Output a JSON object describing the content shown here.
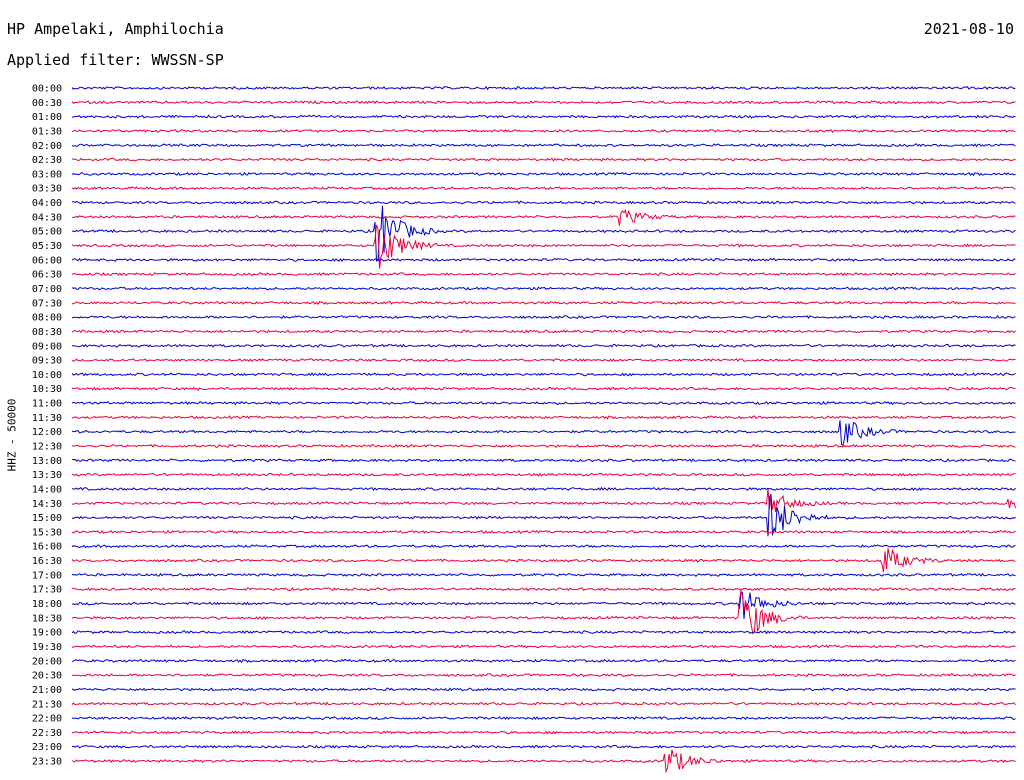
{
  "header": {
    "station": "HP Ampelaki, Amphilochia",
    "date": "2021-08-10",
    "filter": "Applied filter: WWSSN-SP"
  },
  "colors": {
    "even": "#0000cc",
    "odd": "#e8003d"
  },
  "chart_data": {
    "type": "line",
    "title": "",
    "ylabel": "HHZ - 50000",
    "row_labels": [
      "00:00",
      "00:30",
      "01:00",
      "01:30",
      "02:00",
      "02:30",
      "03:00",
      "03:30",
      "04:00",
      "04:30",
      "05:00",
      "05:30",
      "06:00",
      "06:30",
      "07:00",
      "07:30",
      "08:00",
      "08:30",
      "09:00",
      "09:30",
      "10:00",
      "10:30",
      "11:00",
      "11:30",
      "12:00",
      "12:30",
      "13:00",
      "13:30",
      "14:00",
      "14:30",
      "15:00",
      "15:30",
      "16:00",
      "16:30",
      "17:00",
      "17:30",
      "18:00",
      "18:30",
      "19:00",
      "19:30",
      "20:00",
      "20:30",
      "21:00",
      "21:30",
      "22:00",
      "22:30",
      "23:00",
      "23:30"
    ],
    "events": [
      {
        "row": 10,
        "minute": 9.7,
        "amp": 35
      },
      {
        "row": 11,
        "minute": 9.7,
        "amp": 28
      },
      {
        "row": 24,
        "minute": 24.5,
        "amp": 14
      },
      {
        "row": 29,
        "minute": 22.2,
        "amp": 12
      },
      {
        "row": 30,
        "minute": 22.2,
        "amp": 26
      },
      {
        "row": 33,
        "minute": 25.8,
        "amp": 15
      },
      {
        "row": 36,
        "minute": 21.3,
        "amp": 16
      },
      {
        "row": 37,
        "minute": 21.3,
        "amp": 30
      },
      {
        "row": 47,
        "minute": 18.9,
        "amp": 16
      },
      {
        "row": 9,
        "minute": 17.4,
        "amp": 9
      },
      {
        "row": 29,
        "minute": 29.8,
        "amp": 9
      }
    ]
  }
}
